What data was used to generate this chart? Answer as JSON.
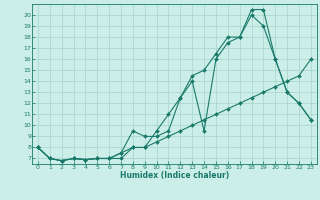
{
  "xlabel": "Humidex (Indice chaleur)",
  "bg_color": "#cceee8",
  "line_color": "#1a7a6a",
  "grid_color": "#aad8d0",
  "xlim": [
    -0.5,
    23.5
  ],
  "ylim": [
    6.5,
    21.0
  ],
  "xticks": [
    0,
    1,
    2,
    3,
    4,
    5,
    6,
    7,
    8,
    9,
    10,
    11,
    12,
    13,
    14,
    15,
    16,
    17,
    18,
    19,
    20,
    21,
    22,
    23
  ],
  "yticks": [
    7,
    8,
    9,
    10,
    11,
    12,
    13,
    14,
    15,
    16,
    17,
    18,
    19,
    20
  ],
  "line1_x": [
    0,
    1,
    2,
    3,
    4,
    5,
    6,
    7,
    8,
    9,
    10,
    11,
    12,
    13,
    14,
    15,
    16,
    17,
    18,
    19,
    20,
    21,
    22,
    23
  ],
  "line1_y": [
    8,
    7,
    6.8,
    7,
    6.9,
    7,
    7,
    7,
    8,
    8,
    8.5,
    9,
    9.5,
    10,
    10.5,
    11,
    11.5,
    12,
    12.5,
    13,
    13.5,
    14,
    14.5,
    16
  ],
  "line2_x": [
    0,
    1,
    2,
    3,
    4,
    5,
    6,
    7,
    8,
    9,
    10,
    11,
    12,
    13,
    14,
    15,
    16,
    17,
    18,
    19,
    20,
    21,
    22,
    23
  ],
  "line2_y": [
    8,
    7,
    6.8,
    7,
    6.9,
    7,
    7,
    7.5,
    9.5,
    9,
    9,
    9.5,
    12.5,
    14,
    9.5,
    16,
    17.5,
    18,
    20,
    19,
    16,
    13,
    12,
    10.5
  ],
  "line3_x": [
    0,
    1,
    2,
    3,
    4,
    5,
    6,
    7,
    8,
    9,
    10,
    11,
    12,
    13,
    14,
    15,
    16,
    17,
    18,
    19,
    20,
    21,
    22,
    23
  ],
  "line3_y": [
    8,
    7,
    6.8,
    7,
    6.9,
    7,
    7,
    7.5,
    8,
    8,
    9.5,
    11,
    12.5,
    14.5,
    15,
    16.5,
    18,
    18,
    20.5,
    20.5,
    16,
    13,
    12,
    10.5
  ]
}
